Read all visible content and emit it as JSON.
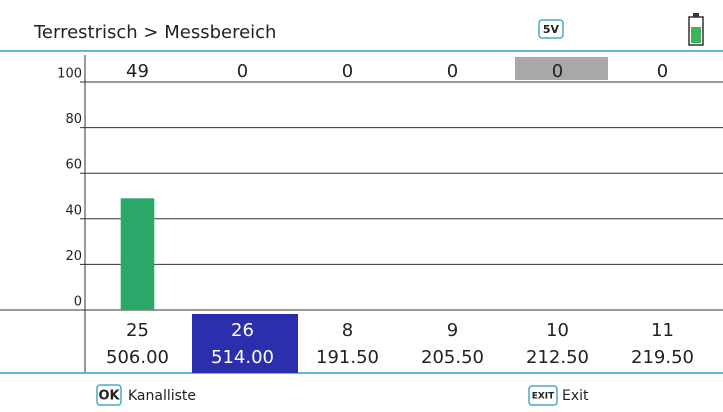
{
  "header": {
    "title": "Terrestrisch > Messbereich",
    "badge": "5V"
  },
  "footer": {
    "ok_key": "OK",
    "ok_label": "Kanalliste",
    "exit_key": "EXIT",
    "exit_label": "Exit"
  },
  "chart_data": {
    "type": "bar",
    "categories": [
      "25",
      "26",
      "8",
      "9",
      "10",
      "11"
    ],
    "frequencies": [
      "506.00",
      "514.00",
      "191.50",
      "205.50",
      "212.50",
      "219.50"
    ],
    "values": [
      49,
      0,
      0,
      0,
      0,
      0
    ],
    "color": "#2aa86a",
    "ylim": [
      0,
      100
    ],
    "yticks": [
      0,
      20,
      40,
      60,
      80,
      100
    ],
    "grid": true,
    "selected_index": 1,
    "highlight_index": 4
  }
}
